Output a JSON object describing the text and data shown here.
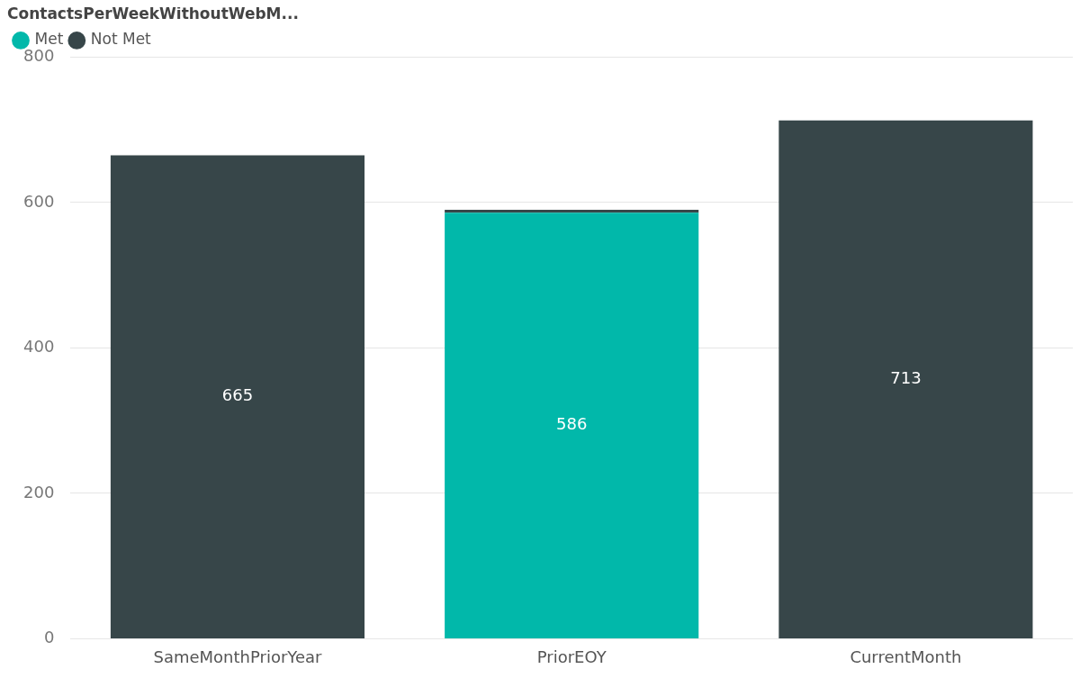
{
  "chart_data": {
    "type": "bar",
    "stacked": true,
    "legend_title": "ContactsPerWeekWithoutWebM...",
    "legend": "top left",
    "grid": "y",
    "categories": [
      "SameMonthPriorYear",
      "PriorEOY",
      "CurrentMonth"
    ],
    "series": [
      {
        "name": "Met",
        "color": "#01b8aa",
        "values": [
          null,
          586,
          null
        ],
        "value_labels": [
          null,
          "586",
          null
        ]
      },
      {
        "name": "Not Met",
        "color": "#374649",
        "values": [
          665,
          4,
          713
        ],
        "value_labels": [
          "665",
          null,
          "713"
        ]
      }
    ],
    "ylim": [
      0,
      800
    ],
    "yticks": [
      0,
      200,
      400,
      600,
      800
    ]
  }
}
